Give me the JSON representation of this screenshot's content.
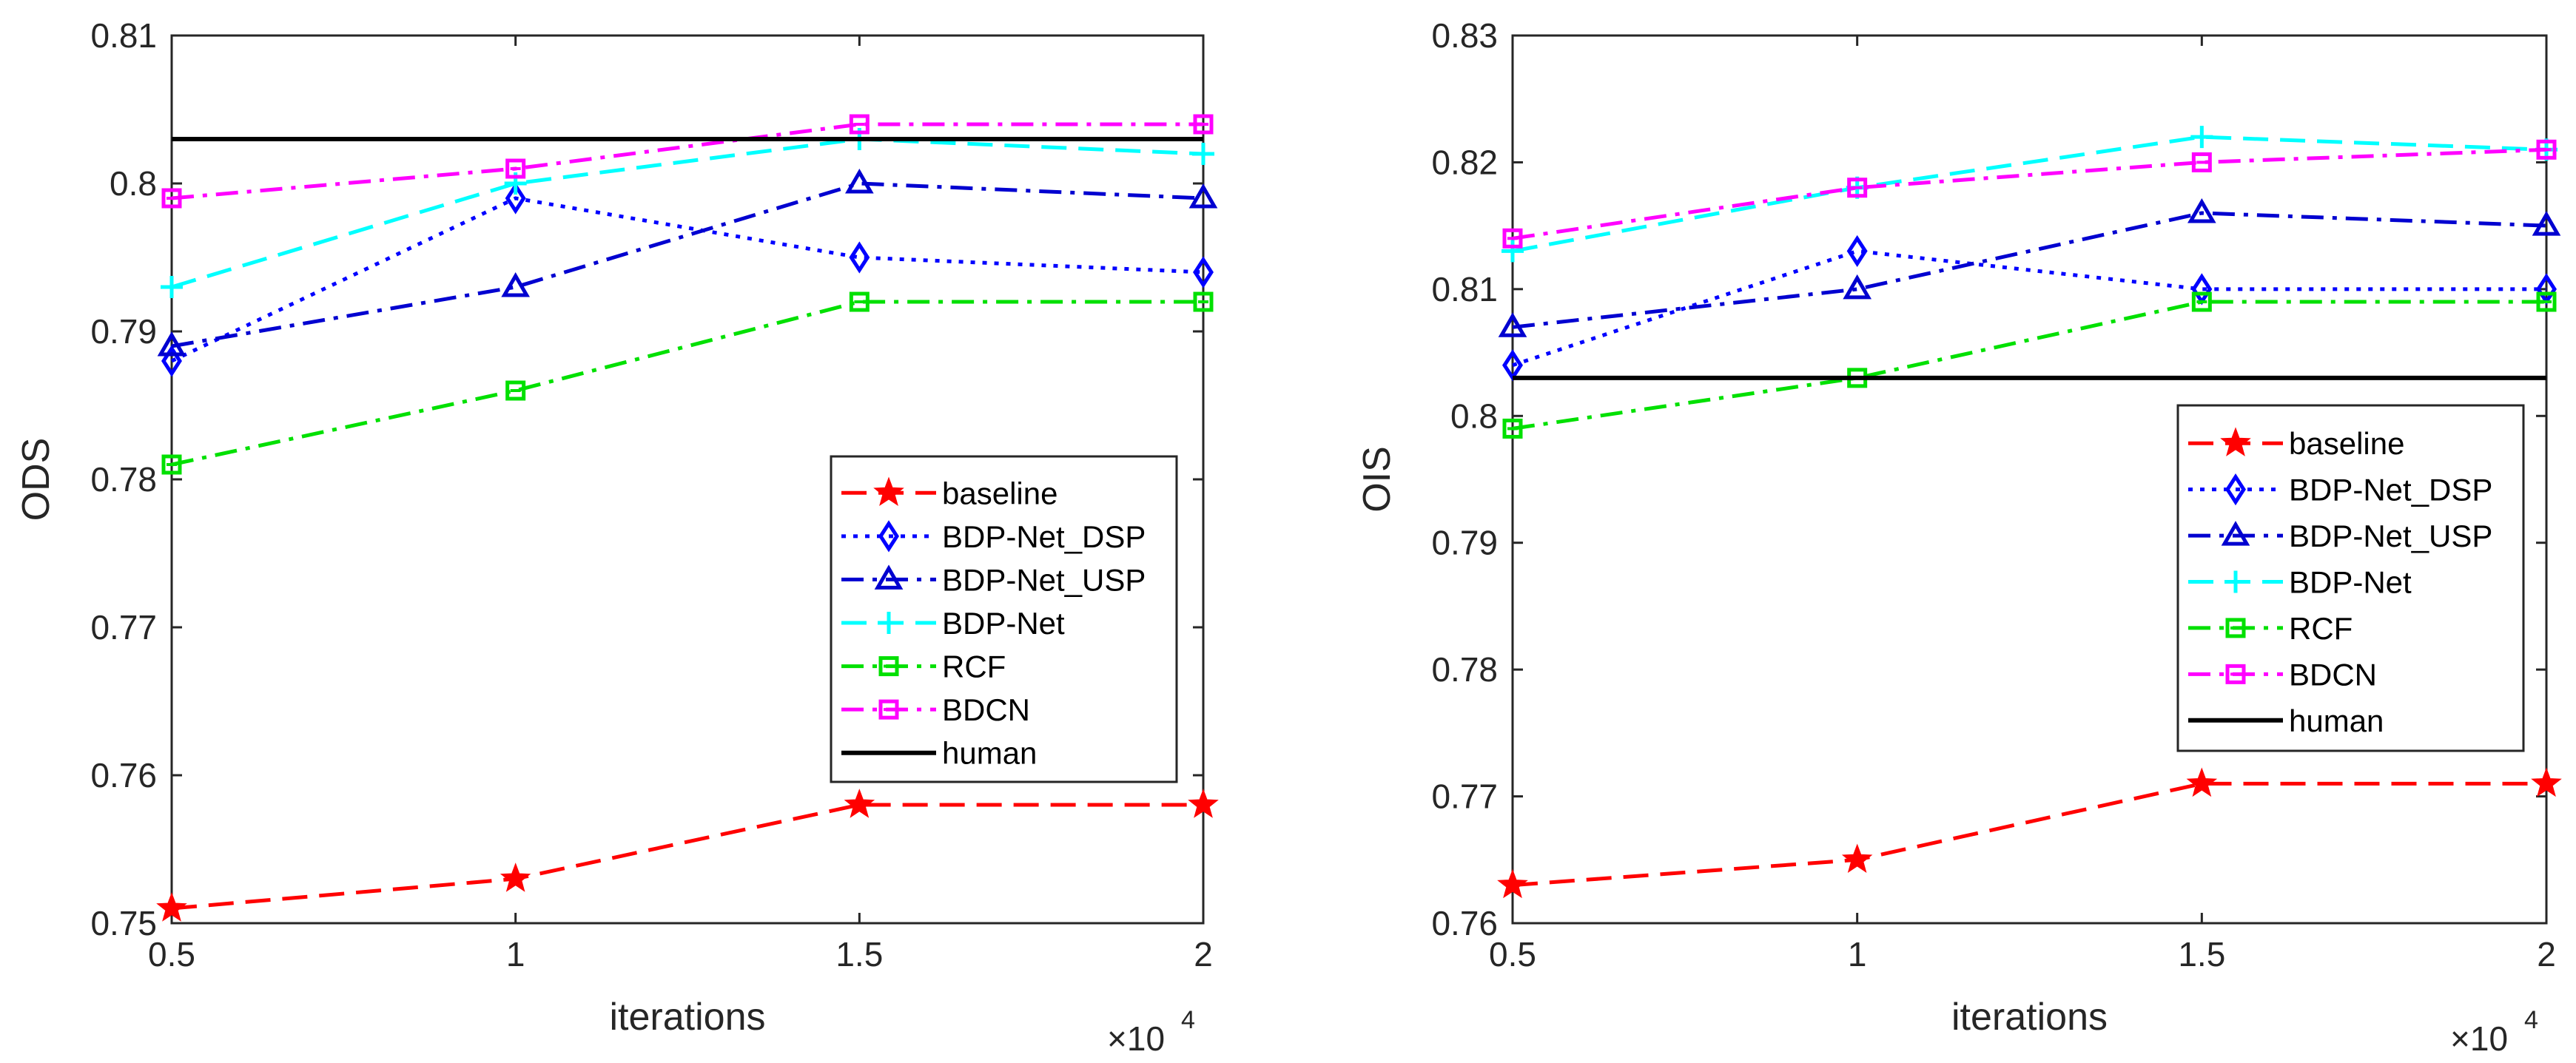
{
  "chart_data": [
    {
      "type": "line",
      "title": "",
      "xlabel": "iterations",
      "ylabel": "ODS",
      "x_multiplier": "×10",
      "x_multiplier_exp": "4",
      "x": [
        0.5,
        1,
        1.5,
        2
      ],
      "xlim": [
        0.5,
        2
      ],
      "ylim": [
        0.75,
        0.81
      ],
      "xticks": [
        "0.5",
        "1",
        "1.5",
        "2"
      ],
      "yticks": [
        "0.75",
        "0.76",
        "0.77",
        "0.78",
        "0.79",
        "0.8",
        "0.81"
      ],
      "legend_position": "lower-right",
      "series": [
        {
          "name": "baseline",
          "color": "#ff0000",
          "dash": "dash",
          "marker": "star",
          "values": [
            0.751,
            0.753,
            0.758,
            0.758
          ]
        },
        {
          "name": "BDP-Net_DSP",
          "color": "#0000ff",
          "dash": "dot",
          "marker": "diamond",
          "values": [
            0.788,
            0.799,
            0.795,
            0.794
          ]
        },
        {
          "name": "BDP-Net_USP",
          "color": "#0000d0",
          "dash": "dashdot",
          "marker": "triangle",
          "values": [
            0.789,
            0.793,
            0.8,
            0.799
          ]
        },
        {
          "name": "BDP-Net",
          "color": "#00ffff",
          "dash": "dash",
          "marker": "plus",
          "values": [
            0.793,
            0.8,
            0.803,
            0.802
          ]
        },
        {
          "name": "RCF",
          "color": "#00e000",
          "dash": "dashdot",
          "marker": "square",
          "values": [
            0.781,
            0.786,
            0.792,
            0.792
          ]
        },
        {
          "name": "BDCN",
          "color": "#ff00ff",
          "dash": "dashdot",
          "marker": "square",
          "values": [
            0.799,
            0.801,
            0.804,
            0.804
          ]
        },
        {
          "name": "human",
          "color": "#000000",
          "dash": "solid",
          "marker": "none",
          "values": [
            0.803,
            0.803,
            0.803,
            0.803
          ]
        }
      ]
    },
    {
      "type": "line",
      "title": "",
      "xlabel": "iterations",
      "ylabel": "OIS",
      "x_multiplier": "×10",
      "x_multiplier_exp": "4",
      "x": [
        0.5,
        1,
        1.5,
        2
      ],
      "xlim": [
        0.5,
        2
      ],
      "ylim": [
        0.76,
        0.83
      ],
      "xticks": [
        "0.5",
        "1",
        "1.5",
        "2"
      ],
      "yticks": [
        "0.76",
        "0.77",
        "0.78",
        "0.79",
        "0.8",
        "0.81",
        "0.82",
        "0.83"
      ],
      "legend_position": "middle-right",
      "series": [
        {
          "name": "baseline",
          "color": "#ff0000",
          "dash": "dash",
          "marker": "star",
          "values": [
            0.763,
            0.765,
            0.771,
            0.771
          ]
        },
        {
          "name": "BDP-Net_DSP",
          "color": "#0000ff",
          "dash": "dot",
          "marker": "diamond",
          "values": [
            0.804,
            0.813,
            0.81,
            0.81
          ]
        },
        {
          "name": "BDP-Net_USP",
          "color": "#0000d0",
          "dash": "dashdot",
          "marker": "triangle",
          "values": [
            0.807,
            0.81,
            0.816,
            0.815
          ]
        },
        {
          "name": "BDP-Net",
          "color": "#00ffff",
          "dash": "dash",
          "marker": "plus",
          "values": [
            0.813,
            0.818,
            0.822,
            0.821
          ]
        },
        {
          "name": "RCF",
          "color": "#00e000",
          "dash": "dashdot",
          "marker": "square",
          "values": [
            0.799,
            0.803,
            0.809,
            0.809
          ]
        },
        {
          "name": "BDCN",
          "color": "#ff00ff",
          "dash": "dashdot",
          "marker": "square",
          "values": [
            0.814,
            0.818,
            0.82,
            0.821
          ]
        },
        {
          "name": "human",
          "color": "#000000",
          "dash": "solid",
          "marker": "none",
          "values": [
            0.803,
            0.803,
            0.803,
            0.803
          ]
        }
      ]
    }
  ]
}
